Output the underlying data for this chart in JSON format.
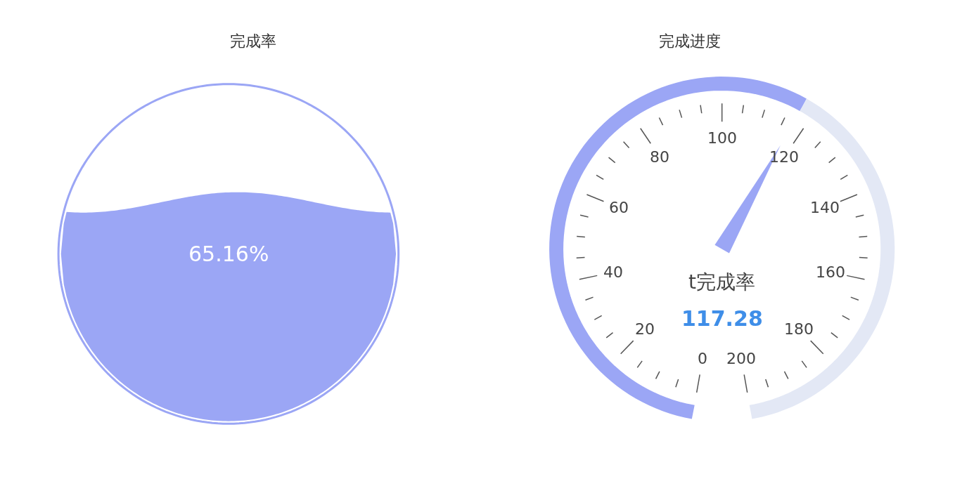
{
  "chart_data": [
    {
      "type": "other",
      "title": "完成率",
      "values": [
        65.16
      ],
      "value_labels": [
        "65.16%"
      ],
      "color": "#9ba6f5"
    },
    {
      "type": "other",
      "title": "完成进度",
      "values": [
        117.28
      ],
      "value_labels": [
        "117.28"
      ],
      "color": "#9ba6f5",
      "annotations": [
        "t完成率",
        "0",
        "20",
        "40",
        "60",
        "80",
        "100",
        "120",
        "140",
        "160",
        "180",
        "200"
      ]
    }
  ]
}
